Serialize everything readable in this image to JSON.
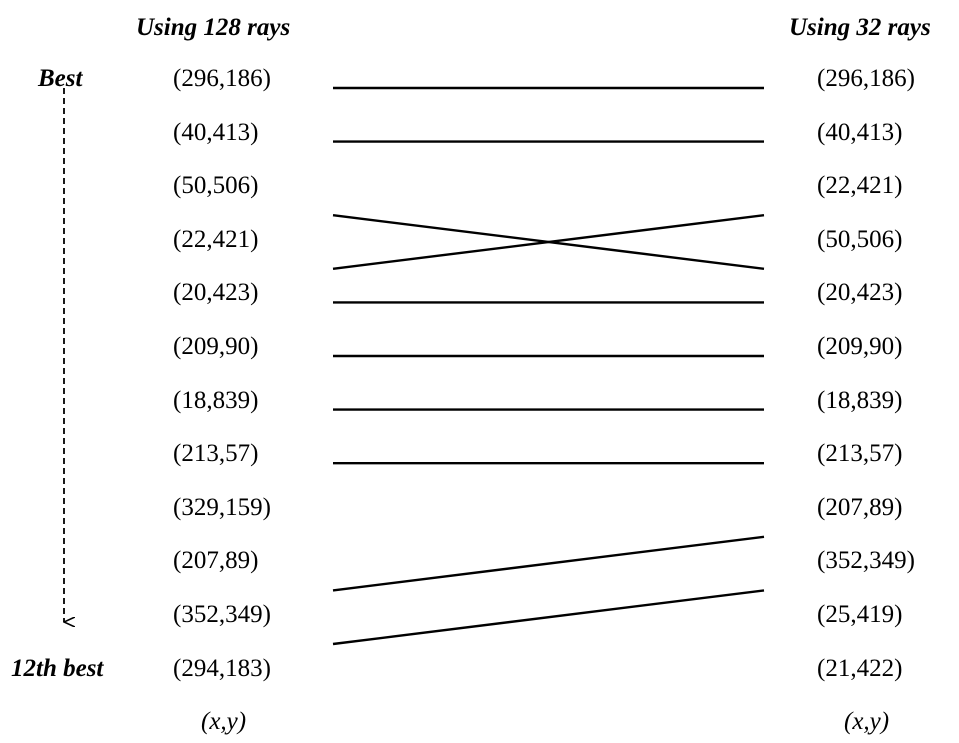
{
  "headers": {
    "left": "Using 128 rays",
    "right": "Using 32 rays"
  },
  "labels": {
    "best": "Best",
    "twelfth_best": "12th best"
  },
  "left_column": [
    "(296,186)",
    "(40,413)",
    "(50,506)",
    "(22,421)",
    "(20,423)",
    "(209,90)",
    "(18,839)",
    "(213,57)",
    "(329,159)",
    "(207,89)",
    "(352,349)",
    "(294,183)"
  ],
  "right_column": [
    "(296,186)",
    "(40,413)",
    "(22,421)",
    "(50,506)",
    "(20,423)",
    "(209,90)",
    "(18,839)",
    "(213,57)",
    "(207,89)",
    "(352,349)",
    "(25,419)",
    "(21,422)"
  ],
  "footers": {
    "left": "(x,y)",
    "right": "(x,y)"
  },
  "connections": [
    [
      0,
      0
    ],
    [
      1,
      1
    ],
    [
      2,
      3
    ],
    [
      3,
      2
    ],
    [
      4,
      4
    ],
    [
      5,
      5
    ],
    [
      6,
      6
    ],
    [
      7,
      7
    ],
    [
      9,
      8
    ],
    [
      10,
      9
    ]
  ]
}
